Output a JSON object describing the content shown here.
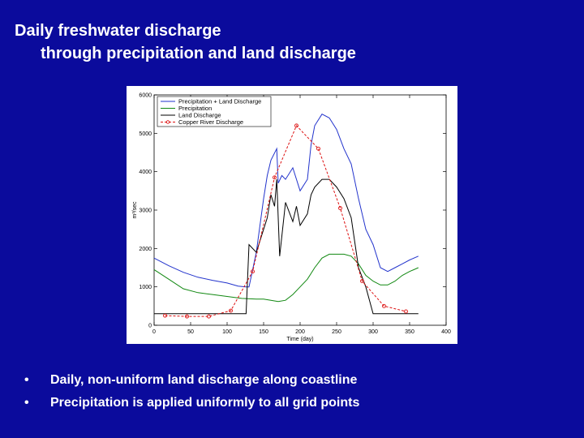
{
  "title": {
    "line1": "Daily freshwater discharge",
    "line2": "through precipitation and land discharge"
  },
  "bullets": [
    {
      "marker": "•",
      "text": "Daily, non-uniform land discharge along coastline"
    },
    {
      "marker": "•",
      "text": "Precipitation is applied uniformly to all grid points"
    }
  ],
  "colors": {
    "background": "#0b0b9c",
    "precip_land": "#2233cc",
    "precip": "#118811",
    "land": "#000000",
    "copper": "#dd1111"
  },
  "chart_data": {
    "type": "line",
    "xlabel": "Time (day)",
    "ylabel": "m³/sec",
    "xlim": [
      0,
      400
    ],
    "ylim": [
      0,
      6000
    ],
    "xticks": [
      "0",
      "50",
      "100",
      "150",
      "200",
      "250",
      "300",
      "350",
      "400"
    ],
    "yticks": [
      "0",
      "1000",
      "2000",
      "3000",
      "4000",
      "5000",
      "6000"
    ],
    "legend_position": "top-left",
    "series": [
      {
        "name": "Precipitation + Land Discharge",
        "color": "#2233cc",
        "marker": "none",
        "x": [
          0,
          20,
          40,
          60,
          80,
          100,
          115,
          126,
          130,
          140,
          150,
          155,
          160,
          168,
          170,
          175,
          180,
          190,
          200,
          210,
          215,
          220,
          230,
          240,
          250,
          260,
          270,
          280,
          290,
          300,
          310,
          320,
          330,
          340,
          350,
          362
        ],
        "y": [
          1750,
          1550,
          1380,
          1250,
          1170,
          1100,
          1020,
          1000,
          1000,
          1900,
          3300,
          3900,
          4300,
          4600,
          3700,
          3900,
          3800,
          4100,
          3500,
          3800,
          4700,
          5200,
          5500,
          5400,
          5100,
          4600,
          4200,
          3300,
          2500,
          2100,
          1500,
          1400,
          1500,
          1600,
          1700,
          1800
        ]
      },
      {
        "name": "Precipitation",
        "color": "#118811",
        "marker": "none",
        "x": [
          0,
          20,
          40,
          60,
          80,
          100,
          120,
          140,
          150,
          160,
          170,
          180,
          190,
          200,
          210,
          220,
          230,
          240,
          250,
          260,
          270,
          280,
          290,
          300,
          310,
          320,
          330,
          340,
          350,
          362
        ],
        "y": [
          1450,
          1200,
          950,
          850,
          800,
          750,
          700,
          680,
          680,
          650,
          620,
          650,
          800,
          1000,
          1200,
          1500,
          1750,
          1850,
          1850,
          1850,
          1800,
          1600,
          1300,
          1150,
          1050,
          1050,
          1150,
          1300,
          1400,
          1500
        ]
      },
      {
        "name": "Land Discharge",
        "color": "#000000",
        "marker": "none",
        "x": [
          0,
          126,
          130,
          140,
          150,
          155,
          160,
          165,
          168,
          172,
          180,
          190,
          195,
          200,
          210,
          215,
          220,
          230,
          240,
          250,
          260,
          270,
          280,
          290,
          300,
          320,
          340,
          362
        ],
        "y": [
          300,
          300,
          2100,
          1900,
          2500,
          2800,
          3400,
          3100,
          3800,
          1800,
          3200,
          2700,
          3100,
          2600,
          2900,
          3400,
          3600,
          3800,
          3800,
          3600,
          3300,
          2800,
          1500,
          1000,
          300,
          300,
          300,
          300
        ]
      },
      {
        "name": "Copper River Discharge",
        "color": "#dd1111",
        "marker": "circle",
        "x": [
          15,
          45,
          75,
          105,
          135,
          165,
          195,
          225,
          255,
          285,
          315,
          345
        ],
        "y": [
          250,
          230,
          230,
          380,
          1400,
          3850,
          5200,
          4600,
          3050,
          1150,
          500,
          360
        ]
      }
    ]
  }
}
